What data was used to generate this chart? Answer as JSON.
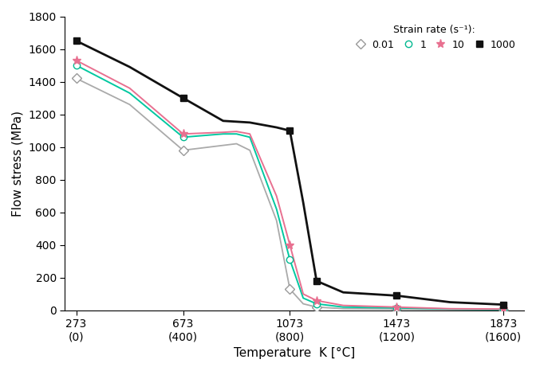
{
  "series": [
    {
      "label": "0.01",
      "color": "#aaaaaa",
      "marker": "D",
      "markersize": 6,
      "markerfacecolor": "white",
      "markeredgecolor": "#999999",
      "linewidth": 1.3,
      "x": [
        273,
        473,
        673,
        823,
        873,
        923,
        1023,
        1073,
        1123,
        1173,
        1273,
        1473,
        1673,
        1873
      ],
      "y": [
        1420,
        1260,
        980,
        1010,
        1020,
        980,
        550,
        130,
        40,
        20,
        10,
        8,
        5,
        3
      ]
    },
    {
      "label": "1",
      "color": "#00c8a0",
      "marker": "o",
      "markersize": 6,
      "markerfacecolor": "white",
      "markeredgecolor": "#00b890",
      "linewidth": 1.4,
      "x": [
        273,
        473,
        673,
        823,
        873,
        923,
        1023,
        1073,
        1123,
        1173,
        1273,
        1473,
        1673,
        1873
      ],
      "y": [
        1500,
        1330,
        1060,
        1080,
        1080,
        1060,
        620,
        310,
        75,
        40,
        20,
        15,
        8,
        5
      ]
    },
    {
      "label": "10",
      "color": "#e87090",
      "marker": "*",
      "markersize": 8,
      "markerfacecolor": "#e87090",
      "markeredgecolor": "#e87090",
      "linewidth": 1.4,
      "x": [
        273,
        473,
        673,
        823,
        873,
        923,
        1023,
        1073,
        1123,
        1173,
        1273,
        1473,
        1673,
        1873
      ],
      "y": [
        1530,
        1360,
        1080,
        1090,
        1095,
        1080,
        700,
        400,
        100,
        60,
        30,
        20,
        10,
        8
      ]
    },
    {
      "label": "1000",
      "color": "#111111",
      "marker": "s",
      "markersize": 6,
      "markerfacecolor": "#111111",
      "markeredgecolor": "#111111",
      "linewidth": 2.0,
      "x": [
        273,
        473,
        673,
        823,
        873,
        923,
        1023,
        1073,
        1123,
        1173,
        1273,
        1473,
        1673,
        1873
      ],
      "y": [
        1650,
        1490,
        1300,
        1160,
        1155,
        1150,
        1120,
        1100,
        660,
        180,
        110,
        90,
        50,
        35
      ]
    }
  ],
  "marker_x": [
    273,
    673,
    1073,
    1173,
    1473,
    1873
  ],
  "marker_y_001": [
    1420,
    980,
    130,
    20,
    8,
    3
  ],
  "marker_y_1": [
    1500,
    1060,
    310,
    40,
    15,
    5
  ],
  "marker_y_10": [
    1530,
    1080,
    400,
    60,
    20,
    8
  ],
  "marker_y_1000": [
    1650,
    1300,
    1100,
    180,
    90,
    35
  ],
  "xlabel": "Temperature  K [°C]",
  "ylabel": "Flow stress (MPa)",
  "legend_title": "Strain rate (s⁻¹):",
  "ylim": [
    0,
    1800
  ],
  "yticks": [
    0,
    200,
    400,
    600,
    800,
    1000,
    1200,
    1400,
    1600,
    1800
  ],
  "xticks": [
    273,
    673,
    1073,
    1473,
    1873
  ],
  "xticklabels_top": [
    "273",
    "673",
    "1073",
    "1473",
    "1873"
  ],
  "xticklabels_bottom": [
    "(0)",
    "(400)",
    "(800)",
    "(1200)",
    "(1600)"
  ],
  "background_color": "#ffffff"
}
